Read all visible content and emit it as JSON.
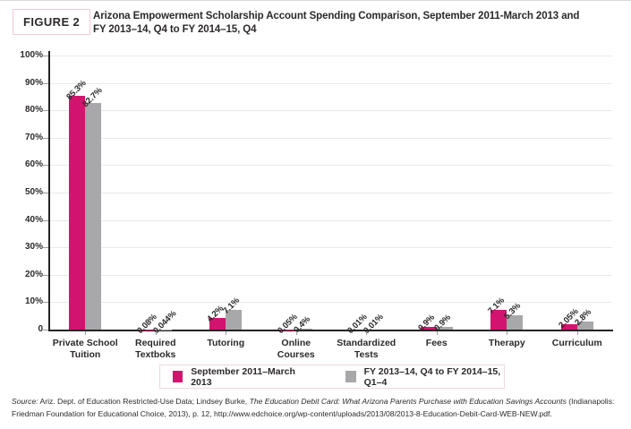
{
  "header": {
    "figure_label": "FIGURE 2",
    "title_line1": "Arizona Empowerment Scholarship Account Spending Comparison, September 2011-March 2013 and",
    "title_line2": "FY 2013–14, Q4 to FY 2014–15, Q4"
  },
  "chart_data": {
    "type": "bar",
    "title": "Arizona Empowerment Scholarship Account Spending Comparison, September 2011-March 2013 and FY 2013–14, Q4 to FY 2014–15, Q4",
    "categories": [
      "Private School\nTuition",
      "Required\nTextboks",
      "Tutoring",
      "Online\nCourses",
      "Standardized\nTests",
      "Fees",
      "Therapy",
      "Curriculum"
    ],
    "series": [
      {
        "name": "September 2011–March 2013",
        "color": "#d3146e",
        "values": [
          85.3,
          0.08,
          4.2,
          0.05,
          0.01,
          0.9,
          7.1,
          2.05
        ]
      },
      {
        "name": "FY 2013–14, Q4 to FY 2014–15, Q1–4",
        "color": "#a8a7aa",
        "values": [
          82.7,
          0.044,
          7.1,
          0.4,
          0.01,
          0.9,
          5.3,
          2.8
        ]
      }
    ],
    "value_suffix": "%",
    "y_tick_labels": [
      "100%",
      "90%",
      "80%",
      "70%",
      "60%",
      "50%",
      "40%",
      "30%",
      "20%",
      "10%",
      "0"
    ],
    "ylim": [
      0,
      100
    ],
    "grid": true,
    "legend_position": "bottom"
  },
  "source": {
    "segments": [
      {
        "text": "Source:",
        "italic": true
      },
      {
        "text": " Ariz. Dept. of Education Restricted-Use Data; Lindsey Burke, ",
        "italic": false
      },
      {
        "text": "The Education Debit Card: What Arizona Parents Purchase with Education Savings Accounts",
        "italic": true
      },
      {
        "text": " (Indianapolis: Friedman Foundation for Educational Choice, 2013), p. 12, http://www.edchoice.org/wp-content/uploads/2013/08/2013-8-Education-Debit-Card-WEB-NEW.pdf.",
        "italic": false
      }
    ]
  },
  "colors": {
    "accent_pink": "#d3146e",
    "bar_gray": "#a8a7aa",
    "text": "#2d292a",
    "gridline": "#e9e9ea",
    "axis": "#272324",
    "badge_border": "#f1c8d6",
    "legend_border": "#eed8dd"
  }
}
